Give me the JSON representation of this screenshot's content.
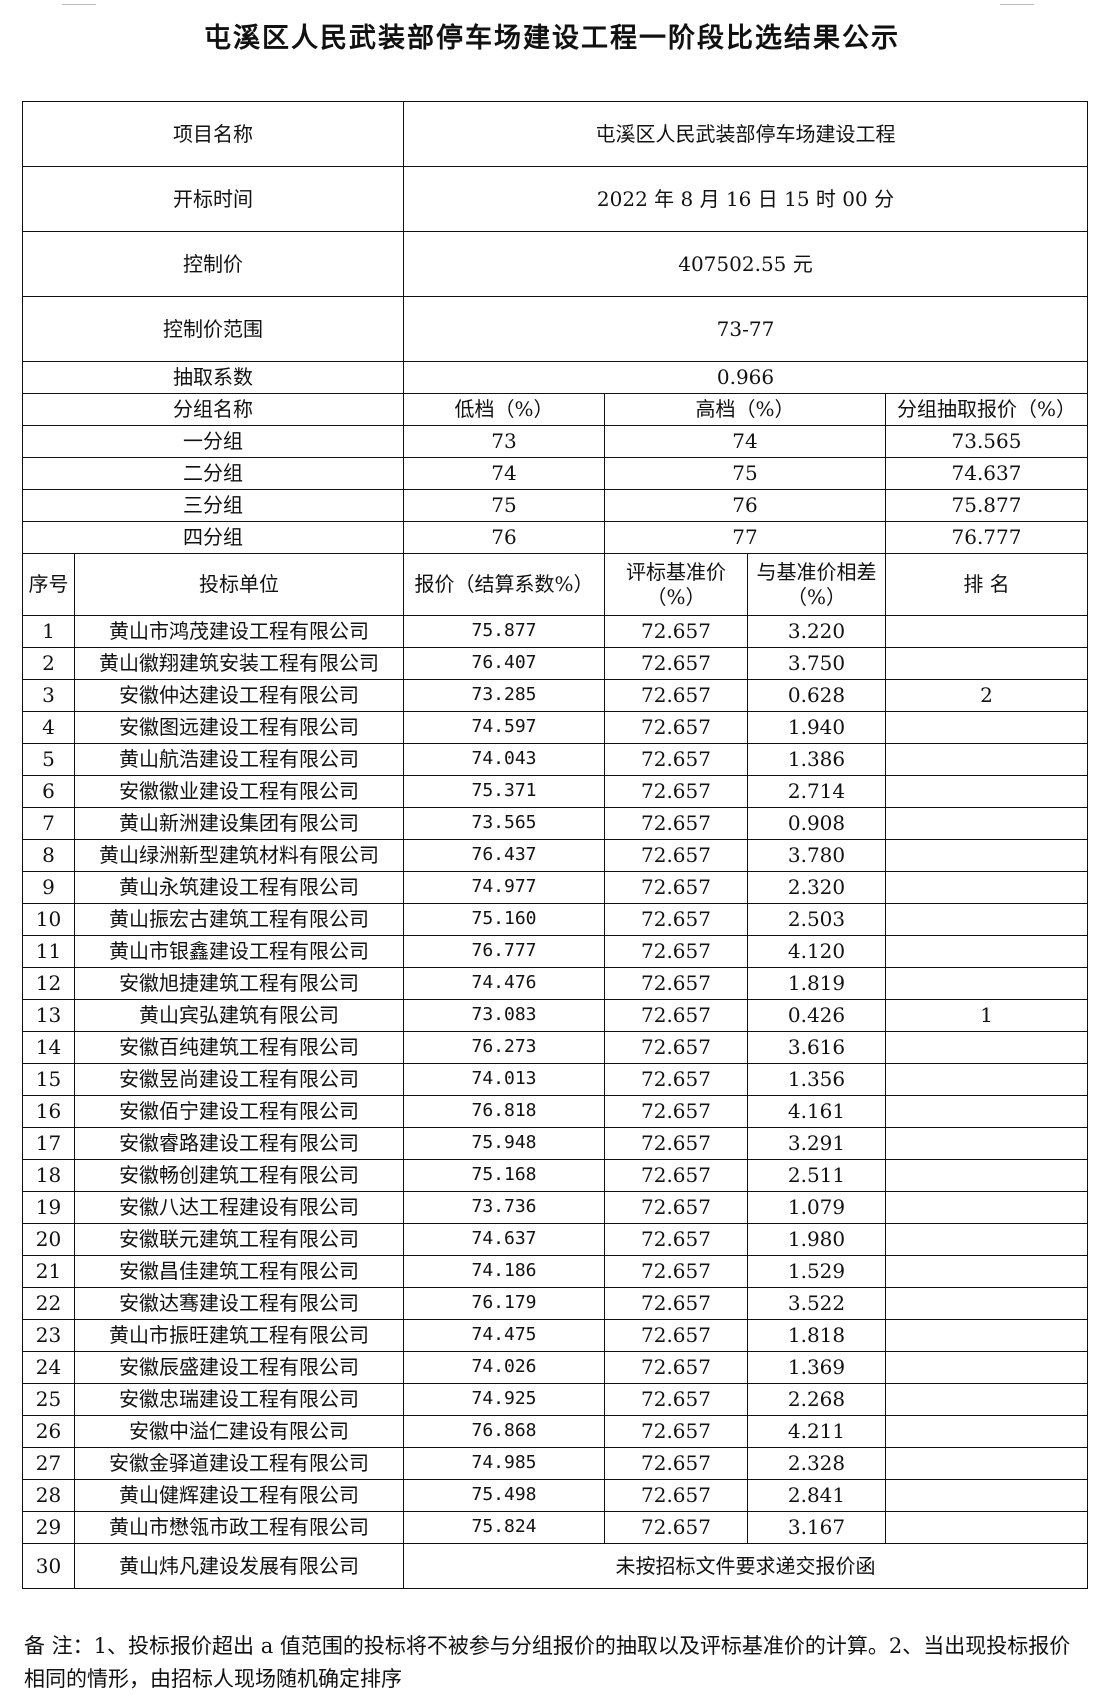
{
  "title": "屯溪区人民武装部停车场建设工程一阶段比选结果公示",
  "info": [
    {
      "label": "项目名称",
      "value": "屯溪区人民武装部停车场建设工程"
    },
    {
      "label": "开标时间",
      "value": "2022 年 8 月 16 日 15 时 00 分"
    },
    {
      "label": "控制价",
      "value": "407502.55 元"
    },
    {
      "label": "控制价范围",
      "value": "73-77"
    }
  ],
  "coefficient": {
    "label": "抽取系数",
    "value": "0.966"
  },
  "groups_header": [
    "分组名称",
    "低档（%）",
    "高档（%）",
    "分组抽取报价（%）"
  ],
  "groups": [
    [
      "一分组",
      "73",
      "74",
      "73.565"
    ],
    [
      "二分组",
      "74",
      "75",
      "74.637"
    ],
    [
      "三分组",
      "75",
      "76",
      "75.877"
    ],
    [
      "四分组",
      "76",
      "77",
      "76.777"
    ]
  ],
  "bids_header": [
    "序号",
    "投标单位",
    "报价（结算系数%）",
    "评标基准价（%）",
    "与基准价相差（%）",
    "排  名"
  ],
  "bids": [
    [
      "1",
      "黄山市鸿茂建设工程有限公司",
      "75.877",
      "72.657",
      "3.220",
      ""
    ],
    [
      "2",
      "黄山徽翔建筑安装工程有限公司",
      "76.407",
      "72.657",
      "3.750",
      ""
    ],
    [
      "3",
      "安徽仲达建设工程有限公司",
      "73.285",
      "72.657",
      "0.628",
      "2"
    ],
    [
      "4",
      "安徽图远建设工程有限公司",
      "74.597",
      "72.657",
      "1.940",
      ""
    ],
    [
      "5",
      "黄山航浩建设工程有限公司",
      "74.043",
      "72.657",
      "1.386",
      ""
    ],
    [
      "6",
      "安徽徽业建设工程有限公司",
      "75.371",
      "72.657",
      "2.714",
      ""
    ],
    [
      "7",
      "黄山新洲建设集团有限公司",
      "73.565",
      "72.657",
      "0.908",
      ""
    ],
    [
      "8",
      "黄山绿洲新型建筑材料有限公司",
      "76.437",
      "72.657",
      "3.780",
      ""
    ],
    [
      "9",
      "黄山永筑建设工程有限公司",
      "74.977",
      "72.657",
      "2.320",
      ""
    ],
    [
      "10",
      "黄山振宏古建筑工程有限公司",
      "75.160",
      "72.657",
      "2.503",
      ""
    ],
    [
      "11",
      "黄山市银鑫建设工程有限公司",
      "76.777",
      "72.657",
      "4.120",
      ""
    ],
    [
      "12",
      "安徽旭捷建筑工程有限公司",
      "74.476",
      "72.657",
      "1.819",
      ""
    ],
    [
      "13",
      "黄山宾弘建筑有限公司",
      "73.083",
      "72.657",
      "0.426",
      "1"
    ],
    [
      "14",
      "安徽百纯建筑工程有限公司",
      "76.273",
      "72.657",
      "3.616",
      ""
    ],
    [
      "15",
      "安徽昱尚建设工程有限公司",
      "74.013",
      "72.657",
      "1.356",
      ""
    ],
    [
      "16",
      "安徽佰宁建设工程有限公司",
      "76.818",
      "72.657",
      "4.161",
      ""
    ],
    [
      "17",
      "安徽睿路建设工程有限公司",
      "75.948",
      "72.657",
      "3.291",
      ""
    ],
    [
      "18",
      "安徽畅创建筑工程有限公司",
      "75.168",
      "72.657",
      "2.511",
      ""
    ],
    [
      "19",
      "安徽八达工程建设有限公司",
      "73.736",
      "72.657",
      "1.079",
      ""
    ],
    [
      "20",
      "安徽联元建筑工程有限公司",
      "74.637",
      "72.657",
      "1.980",
      ""
    ],
    [
      "21",
      "安徽昌佳建筑工程有限公司",
      "74.186",
      "72.657",
      "1.529",
      ""
    ],
    [
      "22",
      "安徽达骞建设工程有限公司",
      "76.179",
      "72.657",
      "3.522",
      ""
    ],
    [
      "23",
      "黄山市振旺建筑工程有限公司",
      "74.475",
      "72.657",
      "1.818",
      ""
    ],
    [
      "24",
      "安徽辰盛建设工程有限公司",
      "74.026",
      "72.657",
      "1.369",
      ""
    ],
    [
      "25",
      "安徽忠瑞建设工程有限公司",
      "74.925",
      "72.657",
      "2.268",
      ""
    ],
    [
      "26",
      "安徽中溢仁建设有限公司",
      "76.868",
      "72.657",
      "4.211",
      ""
    ],
    [
      "27",
      "安徽金驿道建设工程有限公司",
      "74.985",
      "72.657",
      "2.328",
      ""
    ],
    [
      "28",
      "黄山健辉建设工程有限公司",
      "75.498",
      "72.657",
      "2.841",
      ""
    ],
    [
      "29",
      "黄山市懋瓴市政工程有限公司",
      "75.824",
      "72.657",
      "3.167",
      ""
    ]
  ],
  "last_bid": {
    "seq": "30",
    "name": "黄山炜凡建设发展有限公司",
    "remark": "未按招标文件要求递交报价函"
  },
  "note": "备  注：1、投标报价超出 a 值范围的投标将不被参与分组报价的抽取以及评标基准价的计算。2、当出现投标报价相同的情形，由招标人现场随机确定排序"
}
